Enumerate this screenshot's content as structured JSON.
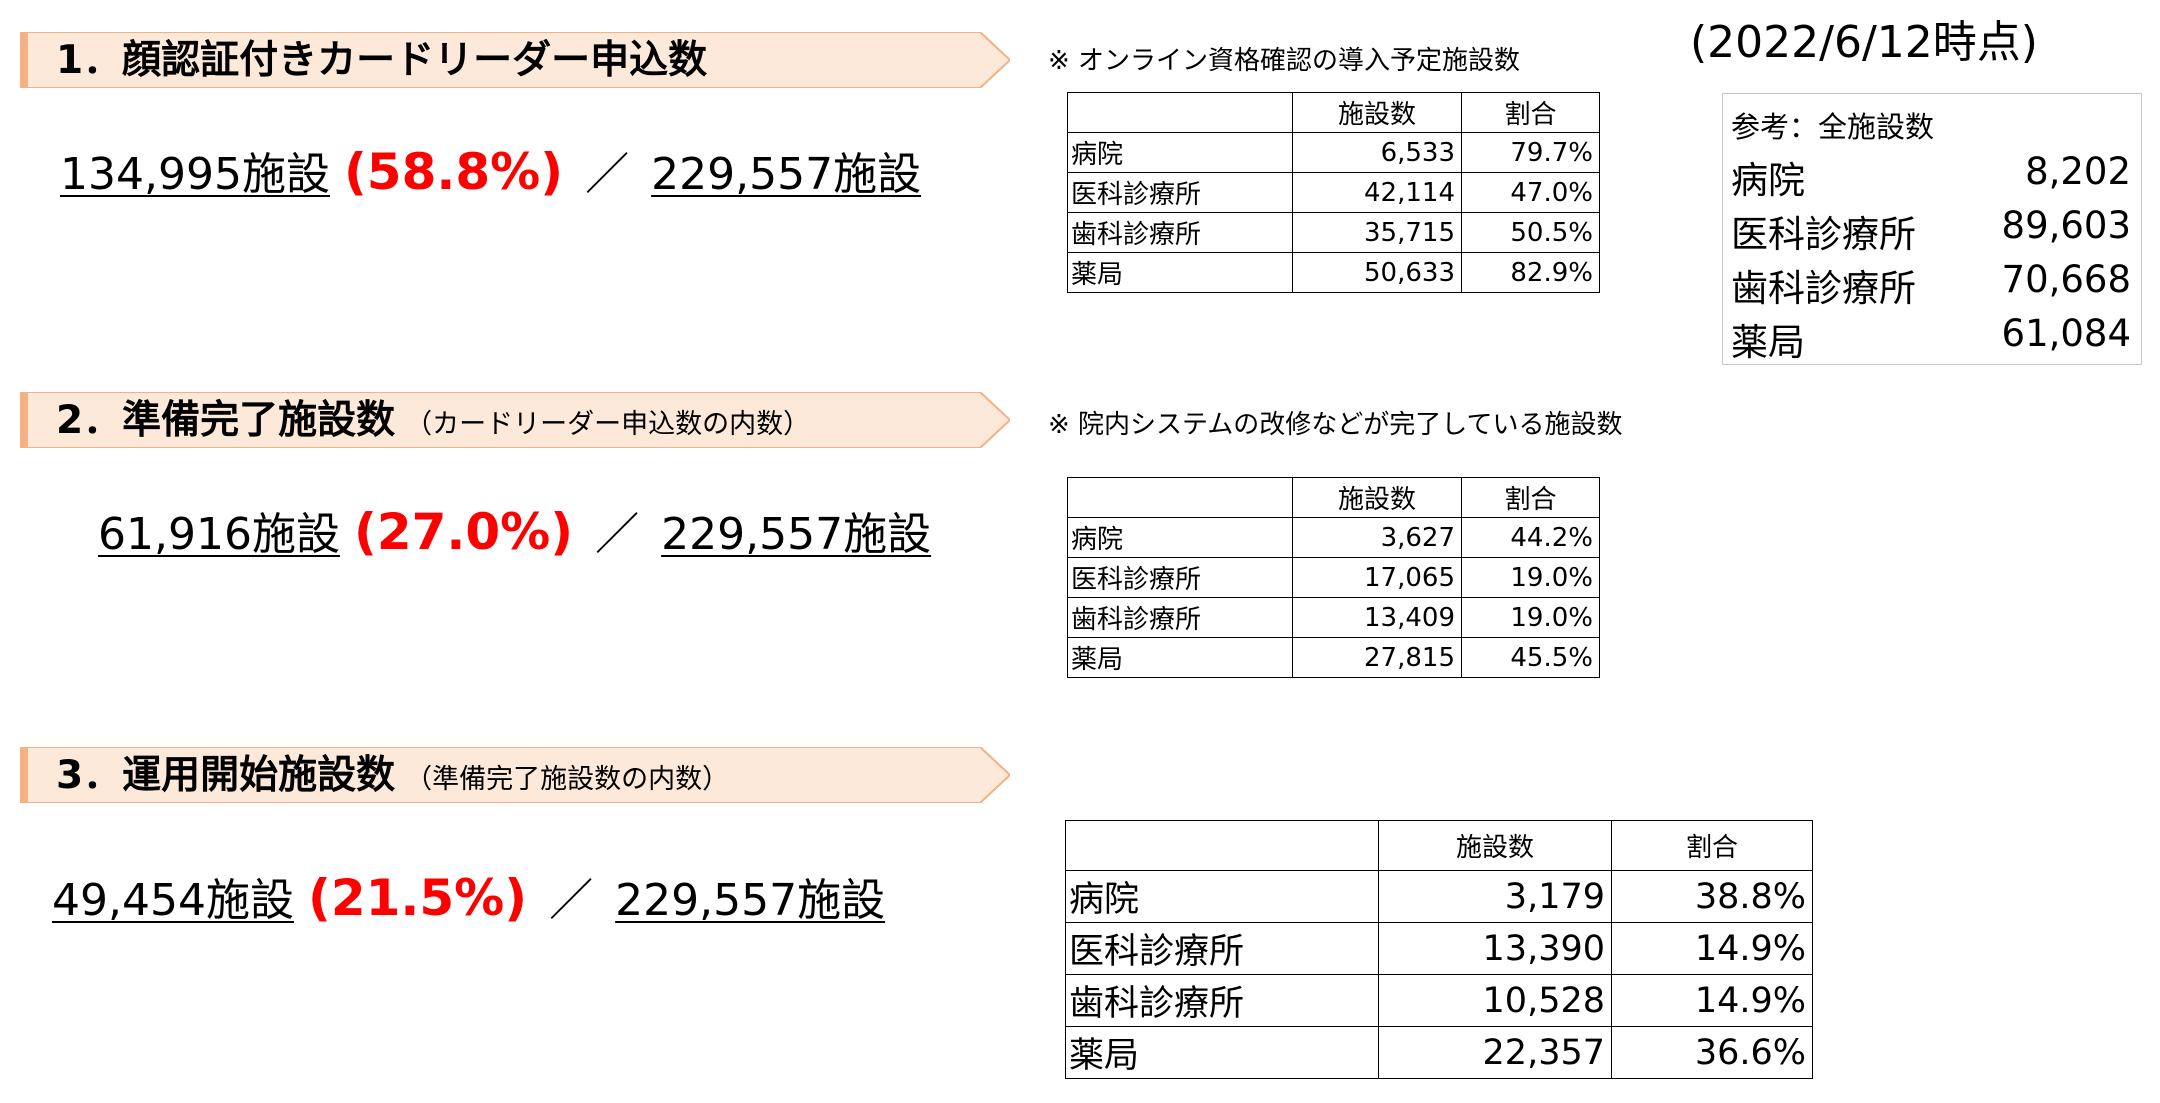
{
  "date_stamp": "(2022/6/12時点)",
  "sections": [
    {
      "title": "1．顔認証付きカードリーダー申込数",
      "subtitle": "",
      "count": "134,995施設",
      "pct": "(58.8%)",
      "sep": "／",
      "total": "229,557施設",
      "note": "※ オンライン資格確認の導入予定施設数",
      "table": {
        "headers": [
          "",
          "施設数",
          "割合"
        ],
        "rows": [
          [
            "病院",
            "6,533",
            "79.7%"
          ],
          [
            "医科診療所",
            "42,114",
            "47.0%"
          ],
          [
            "歯科診療所",
            "35,715",
            "50.5%"
          ],
          [
            "薬局",
            "50,633",
            "82.9%"
          ]
        ]
      }
    },
    {
      "title": "2．準備完了施設数",
      "subtitle": "（カードリーダー申込数の内数）",
      "count": "61,916施設",
      "pct": "(27.0%)",
      "sep": "／",
      "total": "229,557施設",
      "note": "※ 院内システムの改修などが完了している施設数",
      "table": {
        "headers": [
          "",
          "施設数",
          "割合"
        ],
        "rows": [
          [
            "病院",
            "3,627",
            "44.2%"
          ],
          [
            "医科診療所",
            "17,065",
            "19.0%"
          ],
          [
            "歯科診療所",
            "13,409",
            "19.0%"
          ],
          [
            "薬局",
            "27,815",
            "45.5%"
          ]
        ]
      }
    },
    {
      "title": "3．運用開始施設数",
      "subtitle": "（準備完了施設数の内数）",
      "count": "49,454施設",
      "pct": "(21.5%)",
      "sep": "／",
      "total": "229,557施設",
      "note": "",
      "table": {
        "headers": [
          "",
          "施設数",
          "割合"
        ],
        "rows": [
          [
            "病院",
            "3,179",
            "38.8%"
          ],
          [
            "医科診療所",
            "13,390",
            "14.9%"
          ],
          [
            "歯科診療所",
            "10,528",
            "14.9%"
          ],
          [
            "薬局",
            "22,357",
            "36.6%"
          ]
        ]
      }
    }
  ],
  "reference": {
    "title": "参考：全施設数",
    "rows": [
      [
        "病院",
        "8,202"
      ],
      [
        "医科診療所",
        "89,603"
      ],
      [
        "歯科診療所",
        "70,668"
      ],
      [
        "薬局",
        "61,084"
      ]
    ]
  },
  "colors": {
    "banner_fill": "#fde9d9",
    "banner_stripe": "#f4b183",
    "highlight": "#ff0000"
  }
}
